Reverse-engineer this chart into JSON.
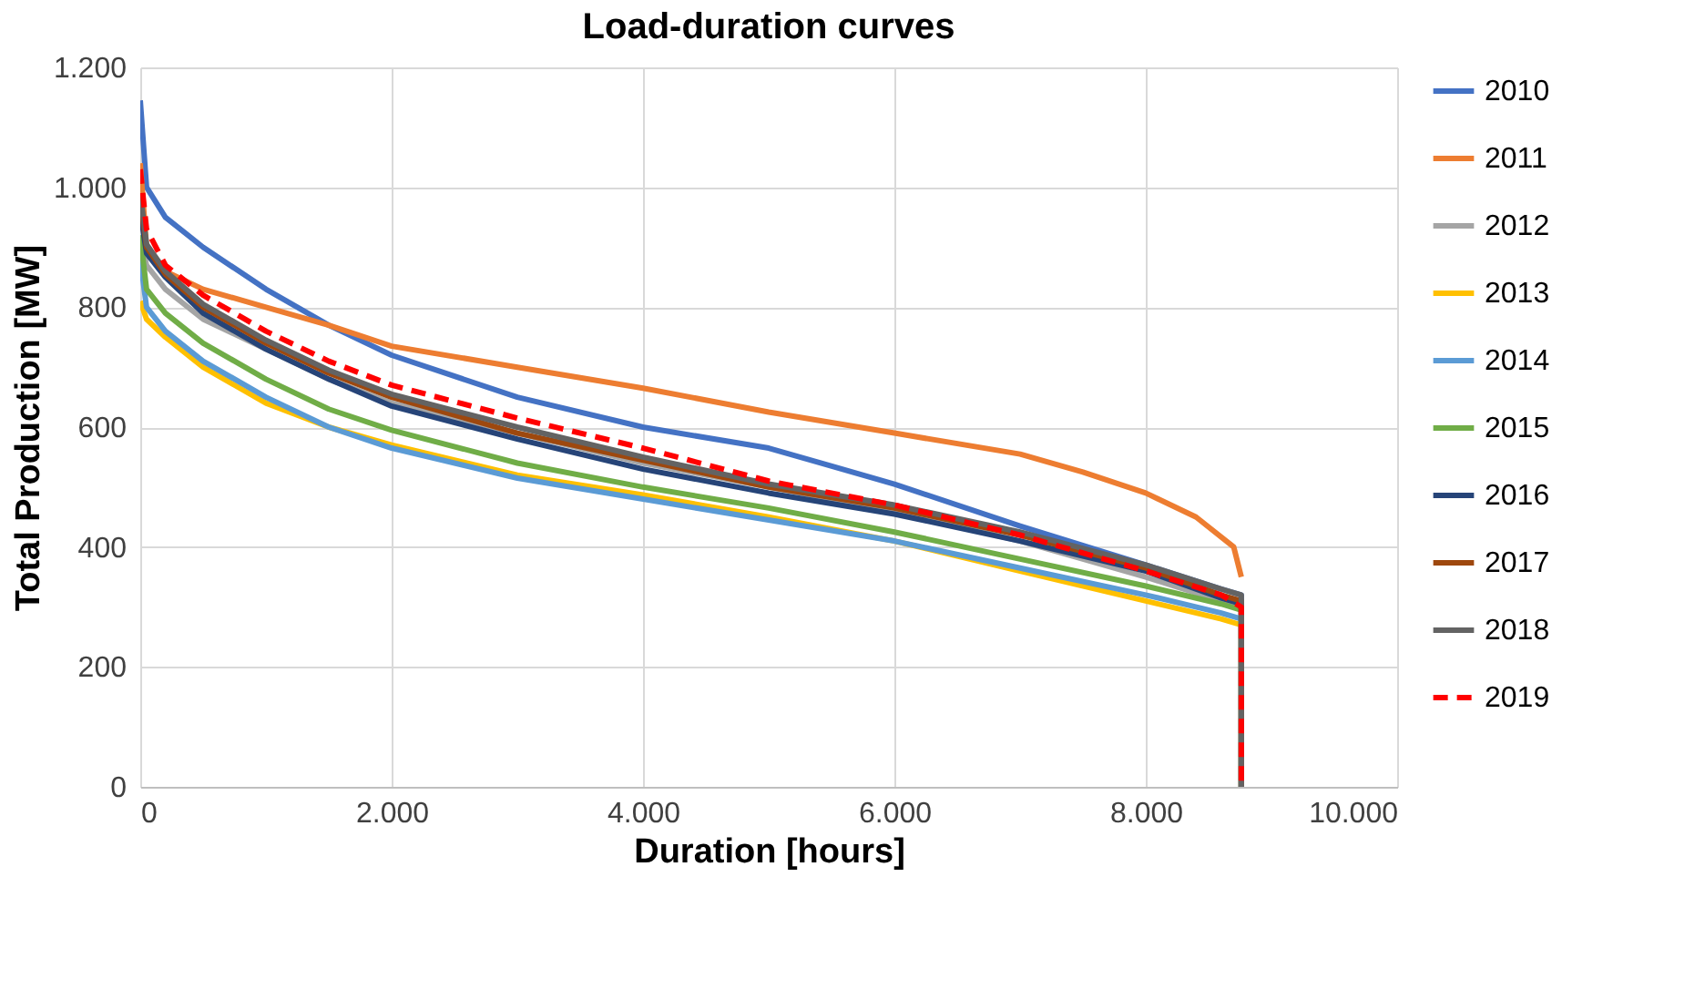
{
  "chart_data": {
    "type": "line",
    "title": "Load-duration curves",
    "xlabel": "Duration [hours]",
    "ylabel": "Total Production [MW]",
    "xlim": [
      0,
      10000
    ],
    "xticks": [
      0,
      {
        "value": 2000,
        "label": "2.000"
      },
      {
        "value": 4000,
        "label": "4.000"
      },
      {
        "value": 6000,
        "label": "6.000"
      },
      {
        "value": 8000,
        "label": "8.000"
      },
      {
        "value": 10000,
        "label": "10.000"
      }
    ],
    "ylim": [
      0,
      1200
    ],
    "yticks": [
      0,
      200,
      400,
      600,
      800,
      {
        "value": 1000,
        "label": "1.000"
      },
      {
        "value": 1200,
        "label": "1.200"
      }
    ],
    "grid": true,
    "legend": "right",
    "line_style": "solid",
    "series": [
      {
        "name": "2010",
        "color": "#4472c4",
        "x": [
          0,
          50,
          200,
          500,
          1000,
          1500,
          2000,
          3000,
          4000,
          5000,
          6000,
          7000,
          8000,
          8600,
          8760,
          8760
        ],
        "values": [
          1145,
          1000,
          950,
          900,
          830,
          770,
          720,
          650,
          600,
          565,
          505,
          435,
          370,
          330,
          320,
          0
        ]
      },
      {
        "name": "2011",
        "color": "#ed7d31",
        "x": [
          0,
          50,
          200,
          500,
          1000,
          1500,
          2000,
          3000,
          4000,
          5000,
          6000,
          7000,
          7500,
          8000,
          8400,
          8700,
          8760
        ],
        "values": [
          1040,
          900,
          860,
          830,
          800,
          770,
          735,
          700,
          665,
          625,
          590,
          555,
          525,
          490,
          450,
          400,
          350
        ]
      },
      {
        "name": "2012",
        "color": "#a5a5a5",
        "x": [
          0,
          50,
          200,
          500,
          1000,
          1500,
          2000,
          3000,
          4000,
          5000,
          6000,
          7000,
          8000,
          8600,
          8760,
          8760
        ],
        "values": [
          920,
          870,
          830,
          780,
          730,
          680,
          640,
          590,
          540,
          500,
          460,
          410,
          350,
          310,
          300,
          0
        ]
      },
      {
        "name": "2013",
        "color": "#ffc000",
        "x": [
          0,
          50,
          200,
          500,
          1000,
          1500,
          2000,
          3000,
          4000,
          5000,
          6000,
          7000,
          8000,
          8600,
          8760,
          8760
        ],
        "values": [
          810,
          780,
          750,
          700,
          640,
          600,
          570,
          520,
          487,
          450,
          410,
          360,
          310,
          280,
          270,
          0
        ]
      },
      {
        "name": "2014",
        "color": "#5b9bd5",
        "x": [
          0,
          50,
          200,
          500,
          1000,
          1500,
          2000,
          3000,
          4000,
          5000,
          6000,
          7000,
          8000,
          8600,
          8760,
          8760
        ],
        "values": [
          880,
          800,
          760,
          710,
          650,
          600,
          565,
          515,
          480,
          445,
          410,
          365,
          320,
          290,
          280,
          0
        ]
      },
      {
        "name": "2015",
        "color": "#70ad47",
        "x": [
          0,
          50,
          200,
          500,
          1000,
          1500,
          2000,
          3000,
          4000,
          5000,
          6000,
          7000,
          8000,
          8600,
          8760,
          8760
        ],
        "values": [
          920,
          830,
          790,
          740,
          680,
          630,
          595,
          540,
          500,
          465,
          425,
          380,
          335,
          305,
          295,
          0
        ]
      },
      {
        "name": "2016",
        "color": "#264478",
        "x": [
          0,
          50,
          200,
          500,
          1000,
          1500,
          2000,
          3000,
          4000,
          5000,
          6000,
          7000,
          8000,
          8600,
          8760,
          8760
        ],
        "values": [
          960,
          890,
          850,
          790,
          730,
          680,
          635,
          580,
          530,
          490,
          455,
          410,
          360,
          315,
          305,
          0
        ]
      },
      {
        "name": "2017",
        "color": "#9e480e",
        "x": [
          0,
          50,
          200,
          500,
          1000,
          1500,
          2000,
          3000,
          4000,
          5000,
          6000,
          7000,
          8000,
          8600,
          8760,
          8760
        ],
        "values": [
          980,
          900,
          855,
          800,
          740,
          690,
          650,
          590,
          545,
          500,
          465,
          420,
          365,
          320,
          310,
          0
        ]
      },
      {
        "name": "2018",
        "color": "#636363",
        "x": [
          0,
          50,
          200,
          500,
          1000,
          1500,
          2000,
          3000,
          4000,
          5000,
          6000,
          7000,
          8000,
          8600,
          8760,
          8760
        ],
        "values": [
          990,
          905,
          860,
          805,
          745,
          695,
          655,
          600,
          550,
          505,
          470,
          425,
          370,
          330,
          320,
          0
        ]
      },
      {
        "name": "2019",
        "color": "#ff0000",
        "line_style": "dashed",
        "x": [
          0,
          50,
          200,
          500,
          1000,
          1500,
          2000,
          3000,
          4000,
          5000,
          6000,
          7000,
          8000,
          8600,
          8760,
          8760
        ],
        "values": [
          1030,
          930,
          870,
          820,
          760,
          710,
          670,
          615,
          565,
          510,
          470,
          420,
          360,
          320,
          300,
          0
        ]
      }
    ]
  }
}
